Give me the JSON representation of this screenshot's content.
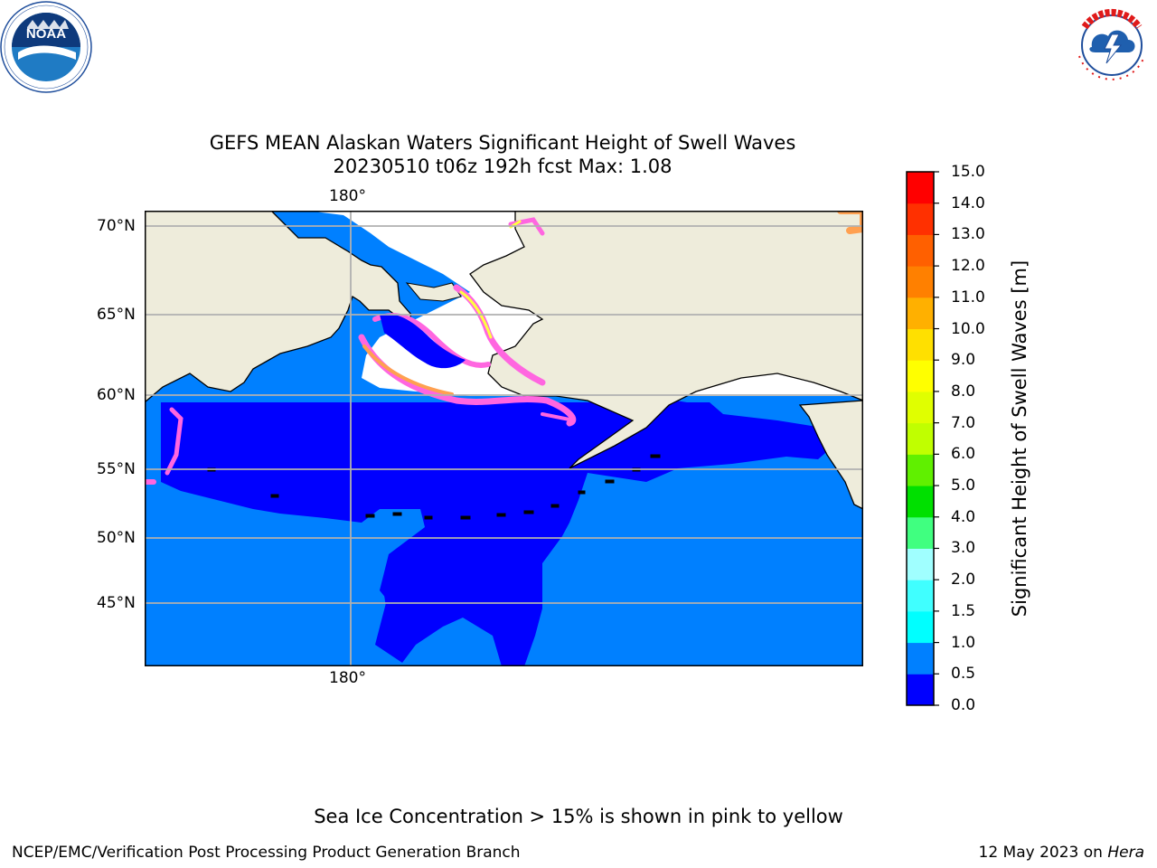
{
  "title": {
    "line1": "GEFS MEAN Alaskan Waters Significant Height of Swell Waves",
    "line2": "20230510 t06z 192h fcst   Max: 1.08"
  },
  "logos": {
    "noaa": {
      "text": "NOAA",
      "ring_text": "NATIONAL OCEANIC AND ATMOSPHERIC ADMINISTRATION · U.S. DEPARTMENT OF COMMERCE"
    },
    "nws": {
      "ring_text": "NATIONAL WEATHER SERVICE"
    }
  },
  "map": {
    "lon_top": "180°",
    "lon_bottom": "180°",
    "lat_labels": [
      "70°N",
      "65°N",
      "60°N",
      "55°N",
      "50°N",
      "45°N"
    ],
    "colors": {
      "land": "#eeecdb",
      "ice": "#ffffff",
      "deep": "#0000ff",
      "ocean": "#0080ff",
      "ice_edge_pink": "#ff66e0",
      "ice_edge_orange": "#ffa050",
      "ice_edge_yellow": "#ffff40"
    }
  },
  "colorbar": {
    "label": "Significant Height of Swell Waves [m]",
    "ticks": [
      "15.0",
      "14.0",
      "13.0",
      "12.0",
      "11.0",
      "10.0",
      "9.0",
      "8.0",
      "7.0",
      "6.0",
      "5.0",
      "4.0",
      "3.0",
      "2.0",
      "1.5",
      "1.0",
      "0.5",
      "0.0"
    ],
    "colors": [
      "#0000ff",
      "#0080ff",
      "#00ffff",
      "#40ffff",
      "#a0ffff",
      "#40ff80",
      "#00e000",
      "#60f000",
      "#c0ff00",
      "#e0ff00",
      "#ffff00",
      "#ffe000",
      "#ffb000",
      "#ff8000",
      "#ff6000",
      "#ff3000",
      "#ff0000"
    ]
  },
  "footer": {
    "note": "Sea Ice Concentration > 15% is shown in pink to yellow",
    "left": "NCEP/EMC/Verification Post Processing Product Generation Branch",
    "right_prefix": "12 May 2023 on ",
    "right_machine": "Hera"
  }
}
